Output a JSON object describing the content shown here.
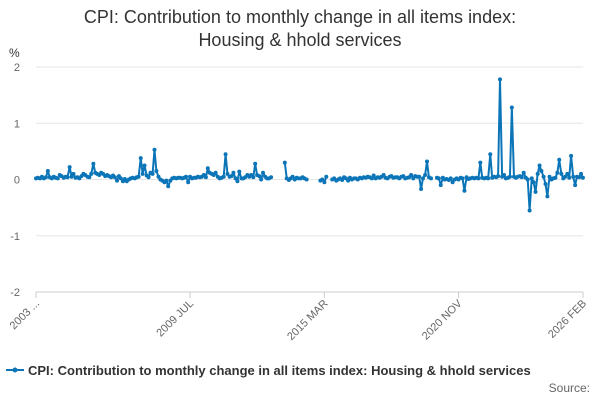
{
  "chart_data": {
    "type": "line",
    "title": "CPI: Contribution to monthly change in all items index: Housing & hhold services",
    "title_lines": [
      "CPI: Contribution to monthly change in all items index:",
      "Housing & hhold services"
    ],
    "ylabel": "%",
    "xlabel": "",
    "ylim": [
      -2,
      2
    ],
    "y_ticks": [
      2,
      1,
      0,
      -1,
      -2
    ],
    "x_range": [
      2003.0,
      2026.083
    ],
    "x_ticks": [
      {
        "label": "2003 ...",
        "x": 2003.0
      },
      {
        "label": "2009 JUL",
        "x": 2009.5
      },
      {
        "label": "2015 MAR",
        "x": 2015.167
      },
      {
        "label": "2020 NOV",
        "x": 2020.833
      },
      {
        "label": "2026 FEB",
        "x": 2026.083
      }
    ],
    "grid": true,
    "legend_position": "bottom",
    "series": [
      {
        "name": "CPI: Contribution to monthly change in all items index: Housing & hhold services",
        "color": "#0b75b8",
        "points": [
          [
            2003.0,
            0.02
          ],
          [
            2003.08,
            0.03
          ],
          [
            2003.17,
            0.02
          ],
          [
            2003.25,
            0.05
          ],
          [
            2003.33,
            0.02
          ],
          [
            2003.42,
            0.04
          ],
          [
            2003.5,
            0.15
          ],
          [
            2003.58,
            0.04
          ],
          [
            2003.67,
            0.02
          ],
          [
            2003.75,
            0.05
          ],
          [
            2003.83,
            0.03
          ],
          [
            2003.92,
            0.02
          ],
          [
            2004.0,
            0.08
          ],
          [
            2004.08,
            0.06
          ],
          [
            2004.17,
            0.03
          ],
          [
            2004.25,
            0.05
          ],
          [
            2004.33,
            0.04
          ],
          [
            2004.42,
            0.22
          ],
          [
            2004.5,
            0.05
          ],
          [
            2004.58,
            0.1
          ],
          [
            2004.67,
            0.03
          ],
          [
            2004.75,
            0.04
          ],
          [
            2004.83,
            0.02
          ],
          [
            2004.92,
            0.06
          ],
          [
            2005.0,
            0.1
          ],
          [
            2005.08,
            0.08
          ],
          [
            2005.17,
            0.05
          ],
          [
            2005.25,
            0.04
          ],
          [
            2005.33,
            0.1
          ],
          [
            2005.42,
            0.28
          ],
          [
            2005.5,
            0.12
          ],
          [
            2005.58,
            0.1
          ],
          [
            2005.67,
            0.08
          ],
          [
            2005.75,
            0.12
          ],
          [
            2005.83,
            0.1
          ],
          [
            2005.92,
            0.06
          ],
          [
            2006.0,
            0.08
          ],
          [
            2006.08,
            0.06
          ],
          [
            2006.17,
            0.04
          ],
          [
            2006.25,
            0.07
          ],
          [
            2006.33,
            0.04
          ],
          [
            2006.42,
            -0.02
          ],
          [
            2006.5,
            0.06
          ],
          [
            2006.58,
            0.02
          ],
          [
            2006.67,
            -0.03
          ],
          [
            2006.75,
            0.01
          ],
          [
            2006.83,
            -0.03
          ],
          [
            2006.92,
            0.0
          ],
          [
            2007.0,
            0.02
          ],
          [
            2007.08,
            0.03
          ],
          [
            2007.17,
            0.02
          ],
          [
            2007.25,
            0.04
          ],
          [
            2007.33,
            0.05
          ],
          [
            2007.42,
            0.38
          ],
          [
            2007.5,
            0.1
          ],
          [
            2007.58,
            0.25
          ],
          [
            2007.67,
            0.07
          ],
          [
            2007.75,
            0.04
          ],
          [
            2007.83,
            0.12
          ],
          [
            2007.92,
            0.1
          ],
          [
            2008.0,
            0.53
          ],
          [
            2008.08,
            0.15
          ],
          [
            2008.17,
            0.05
          ],
          [
            2008.25,
            0.0
          ],
          [
            2008.33,
            -0.02
          ],
          [
            2008.42,
            -0.05
          ],
          [
            2008.5,
            -0.02
          ],
          [
            2008.58,
            -0.12
          ],
          [
            2008.67,
            -0.02
          ],
          [
            2008.75,
            0.02
          ],
          [
            2008.83,
            0.03
          ],
          [
            2008.92,
            0.02
          ],
          [
            2009.0,
            0.03
          ],
          [
            2009.08,
            0.03
          ],
          [
            2009.17,
            0.02
          ],
          [
            2009.25,
            0.03
          ],
          [
            2009.33,
            0.05
          ],
          [
            2009.42,
            -0.05
          ],
          [
            2009.5,
            0.05
          ],
          [
            2009.58,
            0.02
          ],
          [
            2009.67,
            0.03
          ],
          [
            2009.75,
            0.03
          ],
          [
            2009.83,
            0.05
          ],
          [
            2009.92,
            0.04
          ],
          [
            2010.0,
            0.05
          ],
          [
            2010.08,
            0.08
          ],
          [
            2010.17,
            0.04
          ],
          [
            2010.25,
            0.2
          ],
          [
            2010.33,
            0.12
          ],
          [
            2010.42,
            0.1
          ],
          [
            2010.5,
            0.08
          ],
          [
            2010.58,
            0.12
          ],
          [
            2010.67,
            0.05
          ],
          [
            2010.75,
            0.02
          ],
          [
            2010.83,
            0.03
          ],
          [
            2010.92,
            0.05
          ],
          [
            2011.0,
            0.45
          ],
          [
            2011.08,
            0.1
          ],
          [
            2011.17,
            0.05
          ],
          [
            2011.25,
            0.06
          ],
          [
            2011.33,
            0.12
          ],
          [
            2011.42,
            0.02
          ],
          [
            2011.5,
            -0.03
          ],
          [
            2011.58,
            0.14
          ],
          [
            2011.67,
            0.02
          ],
          [
            2011.75,
            0.02
          ],
          [
            2011.83,
            0.04
          ],
          [
            2011.92,
            0.08
          ],
          [
            2012.0,
            0.05
          ],
          [
            2012.08,
            0.08
          ],
          [
            2012.17,
            0.04
          ],
          [
            2012.25,
            0.28
          ],
          [
            2012.33,
            0.08
          ],
          [
            2012.42,
            0.06
          ],
          [
            2012.5,
            0.0
          ],
          [
            2012.58,
            0.12
          ],
          [
            2012.67,
            0.05
          ],
          [
            2012.75,
            0.02
          ],
          [
            2012.83,
            0.02
          ],
          [
            2012.92,
            0.04
          ],
          [
            2013.5,
            0.3
          ],
          [
            2013.58,
            0.02
          ],
          [
            2013.67,
            -0.01
          ],
          [
            2013.75,
            0.02
          ],
          [
            2013.83,
            0.05
          ],
          [
            2013.92,
            0.0
          ],
          [
            2014.0,
            0.03
          ],
          [
            2014.08,
            0.02
          ],
          [
            2014.17,
            0.02
          ],
          [
            2014.25,
            0.04
          ],
          [
            2014.33,
            0.02
          ],
          [
            2014.42,
            0.0
          ],
          [
            2015.0,
            -0.02
          ],
          [
            2015.08,
            0.0
          ],
          [
            2015.17,
            -0.05
          ],
          [
            2015.25,
            0.05
          ],
          [
            2015.5,
            0.0
          ],
          [
            2015.58,
            0.02
          ],
          [
            2015.67,
            -0.02
          ],
          [
            2015.75,
            0.0
          ],
          [
            2015.83,
            0.02
          ],
          [
            2015.92,
            -0.01
          ],
          [
            2016.0,
            0.04
          ],
          [
            2016.08,
            0.02
          ],
          [
            2016.17,
            -0.02
          ],
          [
            2016.25,
            0.03
          ],
          [
            2016.33,
            0.0
          ],
          [
            2016.42,
            0.02
          ],
          [
            2016.5,
            0.02
          ],
          [
            2016.58,
            0.0
          ],
          [
            2016.67,
            0.03
          ],
          [
            2016.75,
            0.02
          ],
          [
            2016.83,
            0.04
          ],
          [
            2016.92,
            0.03
          ],
          [
            2017.0,
            0.05
          ],
          [
            2017.08,
            0.04
          ],
          [
            2017.17,
            0.02
          ],
          [
            2017.25,
            0.07
          ],
          [
            2017.33,
            0.02
          ],
          [
            2017.42,
            0.04
          ],
          [
            2017.5,
            0.03
          ],
          [
            2017.58,
            0.05
          ],
          [
            2017.67,
            0.08
          ],
          [
            2017.75,
            0.03
          ],
          [
            2017.83,
            0.02
          ],
          [
            2017.92,
            0.05
          ],
          [
            2018.0,
            0.06
          ],
          [
            2018.08,
            0.03
          ],
          [
            2018.17,
            0.04
          ],
          [
            2018.25,
            0.04
          ],
          [
            2018.33,
            0.02
          ],
          [
            2018.42,
            0.05
          ],
          [
            2018.5,
            0.06
          ],
          [
            2018.58,
            0.02
          ],
          [
            2018.67,
            0.03
          ],
          [
            2018.75,
            0.04
          ],
          [
            2018.83,
            0.08
          ],
          [
            2018.92,
            0.02
          ],
          [
            2019.0,
            0.06
          ],
          [
            2019.08,
            0.05
          ],
          [
            2019.17,
            0.05
          ],
          [
            2019.25,
            -0.17
          ],
          [
            2019.33,
            0.02
          ],
          [
            2019.42,
            0.08
          ],
          [
            2019.5,
            0.32
          ],
          [
            2019.58,
            0.04
          ],
          [
            2019.67,
            0.02
          ],
          [
            2019.92,
            0.03
          ],
          [
            2020.0,
            0.02
          ],
          [
            2020.08,
            -0.1
          ],
          [
            2020.17,
            0.03
          ],
          [
            2020.25,
            0.0
          ],
          [
            2020.33,
            0.01
          ],
          [
            2020.42,
            -0.01
          ],
          [
            2020.5,
            0.02
          ],
          [
            2020.58,
            -0.05
          ],
          [
            2020.67,
            0.0
          ],
          [
            2020.75,
            0.02
          ],
          [
            2020.83,
            0.0
          ],
          [
            2020.92,
            0.03
          ],
          [
            2021.0,
            0.02
          ],
          [
            2021.08,
            -0.2
          ],
          [
            2021.17,
            0.04
          ],
          [
            2021.25,
            0.01
          ],
          [
            2021.33,
            0.02
          ],
          [
            2021.42,
            0.03
          ],
          [
            2021.5,
            0.02
          ],
          [
            2021.58,
            0.03
          ],
          [
            2021.67,
            0.02
          ],
          [
            2021.75,
            0.3
          ],
          [
            2021.83,
            0.03
          ],
          [
            2021.92,
            0.02
          ],
          [
            2022.0,
            0.03
          ],
          [
            2022.08,
            0.02
          ],
          [
            2022.17,
            0.45
          ],
          [
            2022.25,
            0.03
          ],
          [
            2022.33,
            0.05
          ],
          [
            2022.42,
            0.04
          ],
          [
            2022.5,
            0.06
          ],
          [
            2022.58,
            1.78
          ],
          [
            2022.67,
            0.05
          ],
          [
            2022.75,
            0.08
          ],
          [
            2022.83,
            0.02
          ],
          [
            2022.92,
            0.03
          ],
          [
            2023.0,
            0.05
          ],
          [
            2023.08,
            1.28
          ],
          [
            2023.17,
            0.05
          ],
          [
            2023.25,
            0.03
          ],
          [
            2023.33,
            0.05
          ],
          [
            2023.42,
            0.06
          ],
          [
            2023.5,
            0.04
          ],
          [
            2023.58,
            0.12
          ],
          [
            2023.67,
            0.03
          ],
          [
            2023.75,
            0.0
          ],
          [
            2023.83,
            -0.55
          ],
          [
            2023.92,
            0.02
          ],
          [
            2024.0,
            -0.05
          ],
          [
            2024.08,
            -0.22
          ],
          [
            2024.17,
            0.1
          ],
          [
            2024.25,
            0.25
          ],
          [
            2024.33,
            0.15
          ],
          [
            2024.42,
            0.05
          ],
          [
            2024.5,
            -0.08
          ],
          [
            2024.58,
            -0.3
          ],
          [
            2024.67,
            0.05
          ],
          [
            2024.75,
            0.0
          ],
          [
            2024.83,
            0.02
          ],
          [
            2024.92,
            0.03
          ],
          [
            2025.0,
            0.12
          ],
          [
            2025.08,
            0.35
          ],
          [
            2025.17,
            0.1
          ],
          [
            2025.25,
            0.02
          ],
          [
            2025.33,
            0.05
          ],
          [
            2025.42,
            0.1
          ],
          [
            2025.5,
            0.03
          ],
          [
            2025.58,
            0.42
          ],
          [
            2025.67,
            0.05
          ],
          [
            2025.75,
            -0.1
          ],
          [
            2025.83,
            0.05
          ],
          [
            2025.92,
            0.04
          ],
          [
            2026.0,
            0.1
          ],
          [
            2026.08,
            0.03
          ]
        ]
      }
    ]
  },
  "legend": {
    "label": "CPI: Contribution to monthly change in all items index: Housing & hhold services"
  },
  "source": {
    "label": "Source:"
  }
}
